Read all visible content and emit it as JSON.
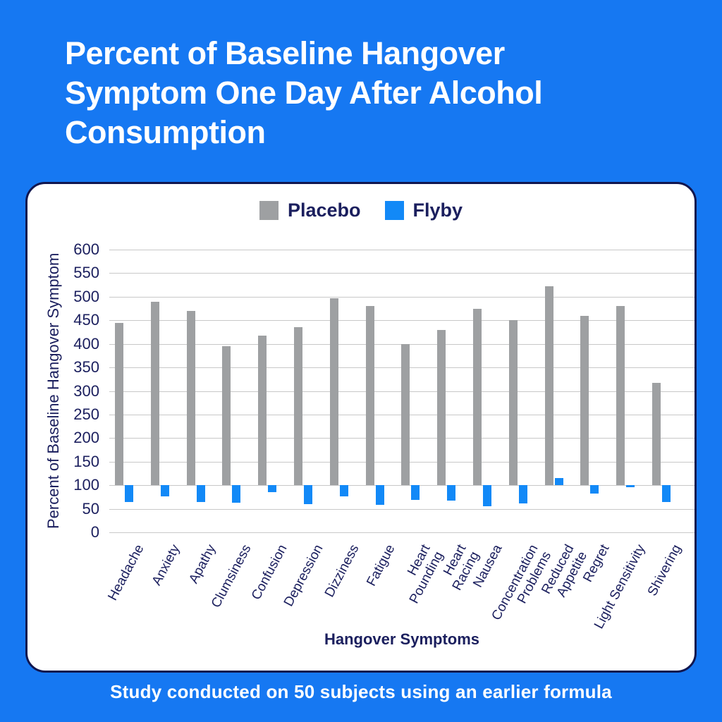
{
  "title": "Percent of Baseline Hangover Symptom One Day After Alcohol Consumption",
  "caption": "Study conducted on 50 subjects using an earlier formula",
  "legend": [
    {
      "label": "Placebo",
      "color": "#9ea0a2"
    },
    {
      "label": "Flyby",
      "color": "#1289f7"
    }
  ],
  "colors": {
    "background": "#1678f2",
    "card_background": "#ffffff",
    "card_border": "#11164f",
    "text_navy": "#1b1f5e",
    "title_white": "#ffffff",
    "gridline": "#c8c8c8",
    "placebo_bar": "#9ea0a2",
    "flyby_bar": "#1289f7"
  },
  "chart_data": {
    "type": "bar",
    "title": "Percent of Baseline Hangover Symptom One Day After Alcohol Consumption",
    "xlabel": "Hangover Symptoms",
    "ylabel": "Percent of Baseline Hangover Symptom",
    "ylim": [
      0,
      600
    ],
    "ytick_step": 50,
    "grid": true,
    "legend_position": "top-center",
    "bar_baseline": 100,
    "categories": [
      "Headache",
      "Anxiety",
      "Apathy",
      "Clumsiness",
      "Confusion",
      "Depression",
      "Dizziness",
      "Fatigue",
      "Heart\nPounding",
      "Heart\nRacing",
      "Nausea",
      "Concentration\nProblems",
      "Reduced\nAppetite",
      "Regret",
      "Light Sensitivity",
      "Shivering"
    ],
    "series": [
      {
        "name": "Placebo",
        "color": "#9ea0a2",
        "values": [
          445,
          490,
          470,
          395,
          418,
          435,
          497,
          480,
          400,
          430,
          474,
          451,
          522,
          460,
          480,
          317
        ]
      },
      {
        "name": "Flyby",
        "color": "#1289f7",
        "values": [
          65,
          76,
          65,
          63,
          85,
          60,
          77,
          59,
          69,
          68,
          55,
          61,
          115,
          82,
          95,
          65
        ]
      }
    ]
  }
}
